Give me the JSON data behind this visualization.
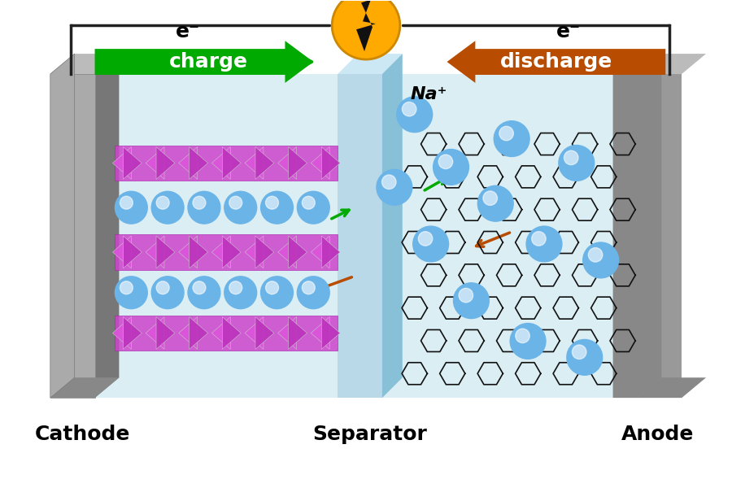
{
  "bg_color": "#ffffff",
  "cathode_color": "#808080",
  "anode_color": "#808080",
  "electrolyte_color": "#daeef3",
  "separator_color": "#c8e8f0",
  "purple_layer": "#cc44cc",
  "na_ion_color": "#6ab4e8",
  "na_ion_highlight": "#ffffff",
  "charge_arrow_color": "#00aa00",
  "discharge_arrow_color": "#b84c00",
  "lightning_color": "#ffa500",
  "wire_color": "#222222",
  "hex_color": "#111111",
  "title_cathode": "Cathode",
  "title_separator": "Separator",
  "title_anode": "Anode",
  "charge_label": "charge",
  "discharge_label": "discharge",
  "e_minus_left": "e⁻",
  "e_minus_right": "e⁻",
  "na_plus_label": "Na⁺"
}
